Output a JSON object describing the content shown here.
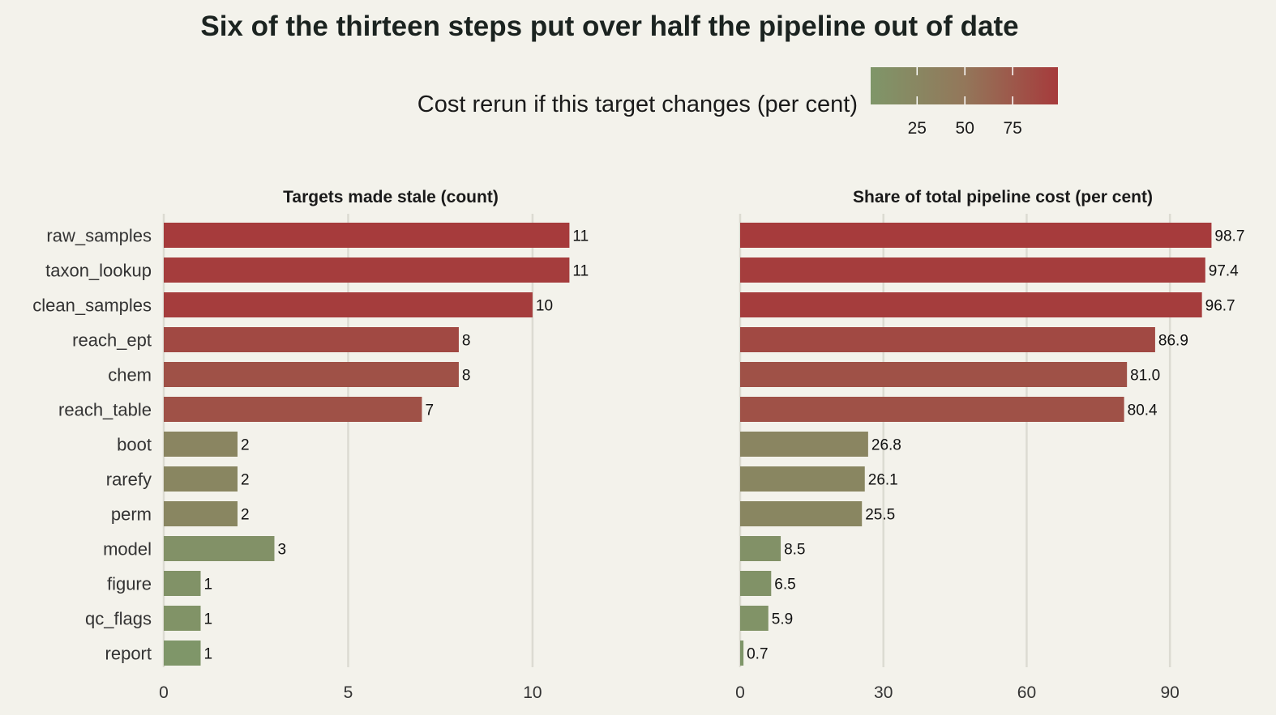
{
  "chart_data": {
    "type": "bar",
    "orientation": "horizontal",
    "title": "Six of the thirteen steps put over half the pipeline out of date",
    "legend": {
      "title": "Cost rerun if this target changes (per cent)",
      "ticks": [
        "25",
        "50",
        "75"
      ],
      "tick_values": [
        25,
        50,
        75
      ],
      "range": [
        0.7,
        98.7
      ],
      "low_color": "#7f9669",
      "high_color": "#a63b3c",
      "placement": "top"
    },
    "categories": [
      "raw_samples",
      "taxon_lookup",
      "clean_samples",
      "reach_ept",
      "chem",
      "reach_table",
      "boot",
      "rarefy",
      "perm",
      "model",
      "figure",
      "qc_flags",
      "report"
    ],
    "color_values": [
      98.7,
      97.4,
      96.7,
      86.9,
      81.0,
      80.4,
      26.8,
      26.1,
      25.5,
      8.5,
      6.5,
      5.9,
      0.7
    ],
    "panels": [
      {
        "title": "Targets made stale (count)",
        "values": [
          11,
          11,
          10,
          8,
          8,
          7,
          2,
          2,
          2,
          3,
          1,
          1,
          1
        ],
        "labels": [
          "11",
          "11",
          "10",
          "8",
          "8",
          "7",
          "2",
          "2",
          "2",
          "3",
          "1",
          "1",
          "1"
        ],
        "xlim": [
          0,
          12.2
        ],
        "ticks": [
          0,
          5,
          10
        ],
        "tick_labels": [
          "0",
          "5",
          "10"
        ]
      },
      {
        "title": "Share of total pipeline cost (per cent)",
        "values": [
          98.7,
          97.4,
          96.7,
          86.9,
          81.0,
          80.4,
          26.8,
          26.1,
          25.5,
          8.5,
          6.5,
          5.9,
          0.7
        ],
        "labels": [
          "98.7",
          "97.4",
          "96.7",
          "86.9",
          "81.0",
          "80.4",
          "26.8",
          "26.1",
          "25.5",
          "8.5",
          "6.5",
          "5.9",
          "0.7"
        ],
        "xlim": [
          0,
          110
        ],
        "ticks": [
          0,
          30,
          60,
          90
        ],
        "tick_labels": [
          "0",
          "30",
          "60",
          "90"
        ]
      }
    ],
    "grid": "vertical"
  }
}
